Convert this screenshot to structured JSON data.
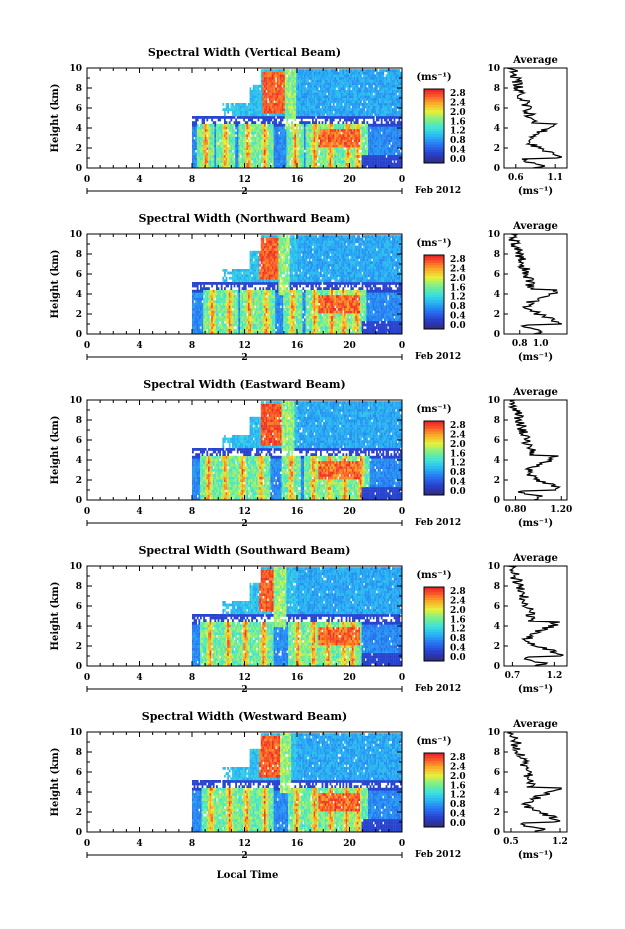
{
  "figure": {
    "xlabel": "Local Time",
    "date_label": "Feb 2012",
    "day_label": "2",
    "unit_label": "(ms⁻¹)",
    "avg_title": "Average",
    "avg_xlabel": "(ms⁻¹)",
    "ylabel": "Height (km)"
  },
  "chart_data": [
    {
      "type": "heatmap",
      "title": "Spectral Width (Vertical Beam)",
      "xticks": [
        "0",
        "4",
        "8",
        "12",
        "16",
        "20",
        "0"
      ],
      "yticks": [
        "0",
        "2",
        "4",
        "6",
        "8",
        "10"
      ],
      "xlim": [
        0,
        24
      ],
      "ylim": [
        0,
        10
      ],
      "colorbar": {
        "ticks": [
          "2.8",
          "2.4",
          "2.0",
          "1.6",
          "1.2",
          "0.8",
          "0.4",
          "0.0"
        ],
        "range": [
          0,
          2.8
        ]
      },
      "data_start_hour": 8,
      "bursts": [
        9,
        10.5,
        12.2,
        13.5,
        15.8,
        17.3,
        18.5,
        19.8,
        20.6
      ],
      "red_core": [
        13.3,
        15.0
      ],
      "average": {
        "xticks": [
          "0.6",
          "1.1"
        ],
        "xlim": [
          0.45,
          1.25
        ]
      }
    },
    {
      "type": "heatmap",
      "title": "Spectral Width (Northward Beam)",
      "xticks": [
        "0",
        "4",
        "8",
        "12",
        "16",
        "20",
        "0"
      ],
      "yticks": [
        "0",
        "2",
        "4",
        "6",
        "8",
        "10"
      ],
      "xlim": [
        0,
        24
      ],
      "ylim": [
        0,
        10
      ],
      "colorbar": {
        "ticks": [
          "2.8",
          "2.4",
          "2.0",
          "1.6",
          "1.2",
          "0.8",
          "0.4",
          "0.0"
        ],
        "range": [
          0,
          2.8
        ]
      },
      "data_start_hour": 8,
      "bursts": [
        9.5,
        10.8,
        12.3,
        13.6,
        15.6,
        17.3,
        18.6,
        19.5,
        20.5
      ],
      "red_core": [
        13.0,
        14.5
      ],
      "average": {
        "xticks": [
          "0.8",
          "1.0"
        ],
        "xlim": [
          0.65,
          1.25
        ]
      }
    },
    {
      "type": "heatmap",
      "title": "Spectral Width (Eastward Beam)",
      "xticks": [
        "0",
        "4",
        "8",
        "12",
        "16",
        "20",
        "0"
      ],
      "yticks": [
        "0",
        "2",
        "4",
        "6",
        "8",
        "10"
      ],
      "xlim": [
        0,
        24
      ],
      "ylim": [
        0,
        10
      ],
      "colorbar": {
        "ticks": [
          "2.8",
          "2.4",
          "2.0",
          "1.6",
          "1.2",
          "0.8",
          "0.4",
          "0.0"
        ],
        "range": [
          0,
          2.8
        ]
      },
      "data_start_hour": 8,
      "bursts": [
        9.2,
        10.5,
        11.8,
        13.2,
        15.5,
        17.2,
        18.4,
        19.6,
        20.8
      ],
      "red_core": [
        13.2,
        14.8
      ],
      "average": {
        "xticks": [
          "0.80",
          "1.20"
        ],
        "xlim": [
          0.7,
          1.25
        ]
      }
    },
    {
      "type": "heatmap",
      "title": "Spectral Width (Southward Beam)",
      "xticks": [
        "0",
        "4",
        "8",
        "12",
        "16",
        "20",
        "0"
      ],
      "yticks": [
        "0",
        "2",
        "4",
        "6",
        "8",
        "10"
      ],
      "xlim": [
        0,
        24
      ],
      "ylim": [
        0,
        10
      ],
      "colorbar": {
        "ticks": [
          "2.8",
          "2.4",
          "2.0",
          "1.6",
          "1.2",
          "0.8",
          "0.4",
          "0.0"
        ],
        "range": [
          0,
          2.8
        ]
      },
      "data_start_hour": 8,
      "bursts": [
        9.3,
        10.7,
        12.0,
        13.4,
        16.0,
        17.2,
        18.3,
        19.5,
        20.2
      ],
      "red_core": [
        13.0,
        14.2
      ],
      "average": {
        "xticks": [
          "0.7",
          "1.2"
        ],
        "xlim": [
          0.6,
          1.35
        ]
      }
    },
    {
      "type": "heatmap",
      "title": "Spectral Width (Westward Beam)",
      "xticks": [
        "0",
        "4",
        "8",
        "12",
        "16",
        "20",
        "0"
      ],
      "yticks": [
        "0",
        "2",
        "4",
        "6",
        "8",
        "10"
      ],
      "xlim": [
        0,
        24
      ],
      "ylim": [
        0,
        10
      ],
      "colorbar": {
        "ticks": [
          "2.8",
          "2.4",
          "2.0",
          "1.6",
          "1.2",
          "0.8",
          "0.4",
          "0.0"
        ],
        "range": [
          0,
          2.8
        ]
      },
      "data_start_hour": 8,
      "bursts": [
        9.4,
        10.8,
        12.1,
        13.5,
        15.9,
        17.3,
        18.5,
        19.7,
        20.6
      ],
      "red_core": [
        13.1,
        14.6
      ],
      "average": {
        "xticks": [
          "0.5",
          "1.2"
        ],
        "xlim": [
          0.4,
          1.3
        ]
      }
    }
  ]
}
